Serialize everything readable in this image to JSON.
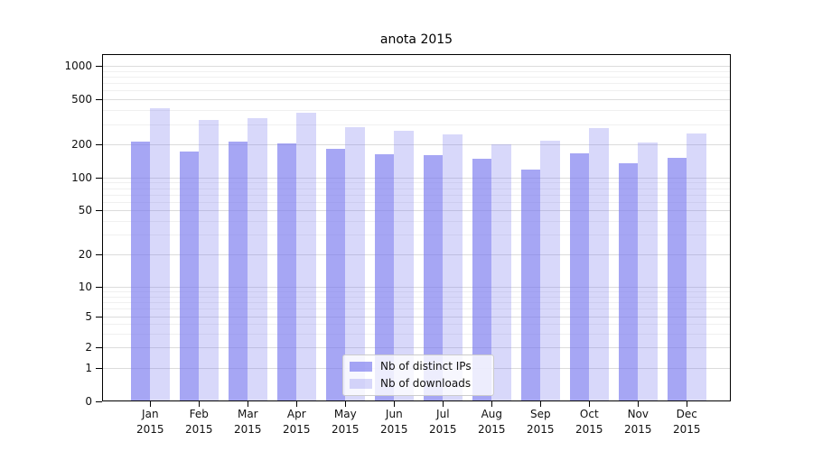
{
  "title": "anota 2015",
  "chart_data": {
    "type": "bar",
    "title": "anota 2015",
    "categories": [
      "Jan",
      "Feb",
      "Mar",
      "Apr",
      "May",
      "Jun",
      "Jul",
      "Aug",
      "Sep",
      "Oct",
      "Nov",
      "Dec"
    ],
    "x_sublabel": "2015",
    "series": [
      {
        "name": "Nb of distinct IPs",
        "color": "rgba(119,119,238,0.65)",
        "values": [
          210,
          172,
          212,
          204,
          181,
          163,
          160,
          148,
          118,
          166,
          135,
          152
        ]
      },
      {
        "name": "Nb of downloads",
        "color": "rgba(119,119,238,0.29)",
        "values": [
          420,
          330,
          342,
          382,
          285,
          261,
          245,
          201,
          216,
          280,
          206,
          251
        ]
      }
    ],
    "yscale": "symlog",
    "ylim": [
      0,
      1000
    ],
    "yticks": [
      0,
      1,
      2,
      5,
      10,
      20,
      50,
      100,
      200,
      500,
      1000
    ],
    "grid": true,
    "legend_position": "lower-center"
  }
}
